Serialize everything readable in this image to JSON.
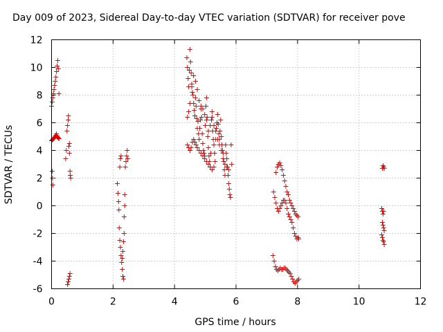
{
  "chart_data": {
    "type": "scatter",
    "title": "Day 009 of 2023, Sidereal Day-to-day VTEC variation (SDTVAR) for receiver pove",
    "xlabel": "GPS time / hours",
    "ylabel": "SDTVAR / TECUs",
    "xlim": [
      0,
      12
    ],
    "ylim": [
      -6,
      12
    ],
    "xticks": [
      0,
      2,
      4,
      6,
      8,
      10,
      12
    ],
    "yticks": [
      -6,
      -4,
      -2,
      0,
      2,
      4,
      6,
      8,
      10,
      12
    ],
    "grid": true,
    "marker": "plus",
    "color": "#e00000",
    "series": [
      {
        "name": "SDTVAR",
        "points": [
          [
            0.0,
            4.7
          ],
          [
            0.02,
            4.75
          ],
          [
            0.04,
            4.8
          ],
          [
            0.06,
            4.85
          ],
          [
            0.08,
            4.9
          ],
          [
            0.1,
            4.95
          ],
          [
            0.12,
            5.0
          ],
          [
            0.14,
            5.1
          ],
          [
            0.16,
            5.2
          ],
          [
            0.18,
            5.05
          ],
          [
            0.2,
            4.95
          ],
          [
            0.22,
            4.9
          ],
          [
            0.24,
            4.85
          ],
          [
            0.0,
            7.2
          ],
          [
            0.02,
            7.5
          ],
          [
            0.04,
            7.8
          ],
          [
            0.06,
            8.1
          ],
          [
            0.08,
            8.4
          ],
          [
            0.1,
            8.7
          ],
          [
            0.12,
            9.0
          ],
          [
            0.14,
            9.3
          ],
          [
            0.16,
            9.7
          ],
          [
            0.18,
            10.1
          ],
          [
            0.2,
            10.5
          ],
          [
            0.22,
            9.9
          ],
          [
            0.24,
            8.1
          ],
          [
            0.02,
            2.5
          ],
          [
            0.03,
            2.0
          ],
          [
            0.04,
            1.5
          ],
          [
            0.46,
            3.4
          ],
          [
            0.48,
            4.0
          ],
          [
            0.5,
            5.4
          ],
          [
            0.52,
            5.8
          ],
          [
            0.54,
            6.2
          ],
          [
            0.55,
            6.5
          ],
          [
            0.56,
            4.3
          ],
          [
            0.58,
            3.8
          ],
          [
            0.58,
            4.5
          ],
          [
            0.6,
            2.5
          ],
          [
            0.61,
            2.2
          ],
          [
            0.62,
            2.0
          ],
          [
            0.52,
            -5.7
          ],
          [
            0.54,
            -5.5
          ],
          [
            0.56,
            -5.3
          ],
          [
            0.58,
            -5.1
          ],
          [
            0.6,
            -4.9
          ],
          [
            2.14,
            1.6
          ],
          [
            2.16,
            0.9
          ],
          [
            2.18,
            0.3
          ],
          [
            2.19,
            -0.3
          ],
          [
            2.2,
            -1.6
          ],
          [
            2.22,
            -2.5
          ],
          [
            2.24,
            -3.0
          ],
          [
            2.26,
            -3.6
          ],
          [
            2.28,
            -4.1
          ],
          [
            2.3,
            -4.6
          ],
          [
            2.32,
            -5.1
          ],
          [
            2.34,
            -5.3
          ],
          [
            2.22,
            2.8
          ],
          [
            2.24,
            3.4
          ],
          [
            2.26,
            3.6
          ],
          [
            2.3,
            -3.8
          ],
          [
            2.32,
            -3.3
          ],
          [
            2.34,
            -2.6
          ],
          [
            2.36,
            -2.0
          ],
          [
            2.36,
            -0.8
          ],
          [
            2.38,
            0.0
          ],
          [
            2.38,
            0.8
          ],
          [
            2.4,
            2.8
          ],
          [
            2.42,
            3.2
          ],
          [
            2.44,
            3.6
          ],
          [
            2.46,
            4.0
          ],
          [
            2.48,
            3.4
          ],
          [
            4.4,
            10.7
          ],
          [
            4.42,
            10.0
          ],
          [
            4.44,
            9.2
          ],
          [
            4.46,
            8.6
          ],
          [
            4.48,
            9.8
          ],
          [
            4.5,
            11.3
          ],
          [
            4.52,
            10.4
          ],
          [
            4.54,
            9.6
          ],
          [
            4.56,
            8.8
          ],
          [
            4.58,
            8.2
          ],
          [
            4.6,
            8.0
          ],
          [
            4.62,
            7.4
          ],
          [
            4.64,
            6.9
          ],
          [
            4.66,
            6.5
          ],
          [
            4.68,
            7.8
          ],
          [
            4.7,
            7.2
          ],
          [
            4.72,
            6.3
          ],
          [
            4.74,
            5.6
          ],
          [
            4.76,
            6.1
          ],
          [
            4.78,
            5.2
          ],
          [
            4.8,
            4.8
          ],
          [
            4.82,
            5.6
          ],
          [
            4.84,
            6.2
          ],
          [
            4.86,
            7.0
          ],
          [
            4.88,
            6.4
          ],
          [
            4.9,
            5.2
          ],
          [
            4.92,
            4.5
          ],
          [
            4.94,
            4.0
          ],
          [
            4.96,
            3.8
          ],
          [
            4.98,
            3.6
          ],
          [
            5.0,
            5.8
          ],
          [
            5.02,
            7.2
          ],
          [
            5.04,
            7.8
          ],
          [
            5.06,
            6.4
          ],
          [
            5.08,
            5.0
          ],
          [
            5.1,
            4.2
          ],
          [
            5.12,
            3.6
          ],
          [
            5.14,
            3.2
          ],
          [
            5.16,
            2.8
          ],
          [
            5.18,
            3.8
          ],
          [
            5.2,
            6.2
          ],
          [
            5.22,
            6.8
          ],
          [
            5.24,
            5.4
          ],
          [
            5.26,
            4.8
          ],
          [
            5.28,
            4.4
          ],
          [
            5.3,
            3.8
          ],
          [
            5.32,
            3.2
          ],
          [
            5.34,
            4.8
          ],
          [
            5.36,
            5.6
          ],
          [
            5.38,
            6.0
          ],
          [
            5.4,
            6.6
          ],
          [
            5.42,
            5.9
          ],
          [
            5.44,
            5.2
          ],
          [
            5.46,
            4.8
          ],
          [
            5.48,
            5.4
          ],
          [
            5.5,
            6.2
          ],
          [
            5.52,
            5.0
          ],
          [
            5.54,
            4.4
          ],
          [
            5.56,
            4.0
          ],
          [
            5.58,
            3.8
          ],
          [
            5.6,
            3.2
          ],
          [
            5.62,
            2.6
          ],
          [
            5.64,
            2.2
          ],
          [
            5.66,
            4.4
          ],
          [
            5.68,
            3.8
          ],
          [
            5.7,
            3.4
          ],
          [
            5.72,
            2.8
          ],
          [
            5.74,
            2.2
          ],
          [
            5.76,
            1.6
          ],
          [
            5.78,
            1.2
          ],
          [
            5.8,
            0.8
          ],
          [
            5.82,
            0.6
          ],
          [
            5.84,
            4.4
          ],
          [
            5.86,
            3.0
          ],
          [
            4.42,
            4.4
          ],
          [
            4.46,
            4.2
          ],
          [
            4.5,
            4.0
          ],
          [
            4.54,
            4.2
          ],
          [
            4.58,
            4.6
          ],
          [
            4.62,
            4.8
          ],
          [
            4.66,
            4.6
          ],
          [
            4.7,
            4.4
          ],
          [
            4.74,
            4.2
          ],
          [
            4.8,
            4.0
          ],
          [
            4.86,
            3.8
          ],
          [
            4.92,
            3.6
          ],
          [
            4.98,
            3.4
          ],
          [
            5.04,
            3.2
          ],
          [
            5.1,
            3.0
          ],
          [
            5.16,
            2.8
          ],
          [
            5.22,
            2.6
          ],
          [
            5.28,
            2.8
          ],
          [
            4.42,
            6.4
          ],
          [
            4.46,
            6.8
          ],
          [
            4.5,
            7.4
          ],
          [
            4.56,
            8.6
          ],
          [
            4.62,
            9.4
          ],
          [
            4.68,
            9.0
          ],
          [
            4.74,
            8.4
          ],
          [
            4.8,
            7.6
          ],
          [
            4.86,
            7.2
          ],
          [
            4.92,
            7.0
          ],
          [
            4.98,
            6.6
          ],
          [
            5.04,
            6.2
          ],
          [
            5.1,
            5.4
          ],
          [
            5.16,
            5.8
          ],
          [
            5.22,
            6.4
          ],
          [
            5.28,
            5.8
          ],
          [
            5.34,
            5.4
          ],
          [
            5.4,
            4.8
          ],
          [
            5.46,
            4.4
          ],
          [
            5.52,
            4.0
          ],
          [
            5.58,
            3.4
          ],
          [
            5.64,
            3.0
          ],
          [
            5.7,
            2.8
          ],
          [
            5.76,
            2.6
          ],
          [
            7.22,
            1.0
          ],
          [
            7.26,
            0.6
          ],
          [
            7.3,
            0.2
          ],
          [
            7.34,
            -0.2
          ],
          [
            7.38,
            -0.4
          ],
          [
            7.42,
            -0.2
          ],
          [
            7.46,
            0.0
          ],
          [
            7.5,
            0.2
          ],
          [
            7.54,
            0.4
          ],
          [
            7.58,
            0.4
          ],
          [
            7.62,
            0.2
          ],
          [
            7.66,
            -0.2
          ],
          [
            7.7,
            -0.6
          ],
          [
            7.74,
            -0.8
          ],
          [
            7.78,
            -1.0
          ],
          [
            7.82,
            -1.2
          ],
          [
            7.86,
            -1.6
          ],
          [
            7.9,
            -2.0
          ],
          [
            7.94,
            -2.2
          ],
          [
            7.98,
            -2.4
          ],
          [
            8.02,
            -2.3
          ],
          [
            8.04,
            -2.4
          ],
          [
            7.3,
            2.4
          ],
          [
            7.34,
            2.8
          ],
          [
            7.38,
            3.0
          ],
          [
            7.42,
            3.1
          ],
          [
            7.46,
            2.9
          ],
          [
            7.5,
            2.6
          ],
          [
            7.54,
            2.2
          ],
          [
            7.58,
            1.8
          ],
          [
            7.62,
            1.4
          ],
          [
            7.66,
            1.0
          ],
          [
            7.7,
            0.8
          ],
          [
            7.74,
            0.4
          ],
          [
            7.78,
            0.2
          ],
          [
            7.82,
            0.0
          ],
          [
            7.86,
            -0.2
          ],
          [
            7.9,
            -0.4
          ],
          [
            7.94,
            -0.6
          ],
          [
            7.98,
            -0.7
          ],
          [
            8.02,
            -0.8
          ],
          [
            7.2,
            -3.6
          ],
          [
            7.24,
            -4.0
          ],
          [
            7.28,
            -4.4
          ],
          [
            7.32,
            -4.6
          ],
          [
            7.36,
            -4.7
          ],
          [
            7.4,
            -4.6
          ],
          [
            7.44,
            -4.5
          ],
          [
            7.48,
            -4.6
          ],
          [
            7.52,
            -4.6
          ],
          [
            7.56,
            -4.5
          ],
          [
            7.6,
            -4.5
          ],
          [
            7.64,
            -4.6
          ],
          [
            7.68,
            -4.7
          ],
          [
            7.72,
            -4.8
          ],
          [
            7.76,
            -4.9
          ],
          [
            7.8,
            -5.1
          ],
          [
            7.84,
            -5.3
          ],
          [
            7.88,
            -5.5
          ],
          [
            7.92,
            -5.6
          ],
          [
            7.96,
            -5.5
          ],
          [
            8.0,
            -5.4
          ],
          [
            8.04,
            -5.3
          ],
          [
            10.76,
            2.7
          ],
          [
            10.78,
            2.9
          ],
          [
            10.8,
            2.8
          ],
          [
            10.82,
            2.7
          ],
          [
            10.74,
            -0.2
          ],
          [
            10.76,
            -0.4
          ],
          [
            10.78,
            -0.6
          ],
          [
            10.8,
            -0.4
          ],
          [
            10.76,
            -1.2
          ],
          [
            10.78,
            -1.4
          ],
          [
            10.8,
            -1.6
          ],
          [
            10.82,
            -1.8
          ],
          [
            10.74,
            -2.1
          ],
          [
            10.76,
            -2.3
          ],
          [
            10.78,
            -2.5
          ],
          [
            10.8,
            -2.6
          ],
          [
            10.82,
            -2.8
          ]
        ]
      }
    ]
  }
}
